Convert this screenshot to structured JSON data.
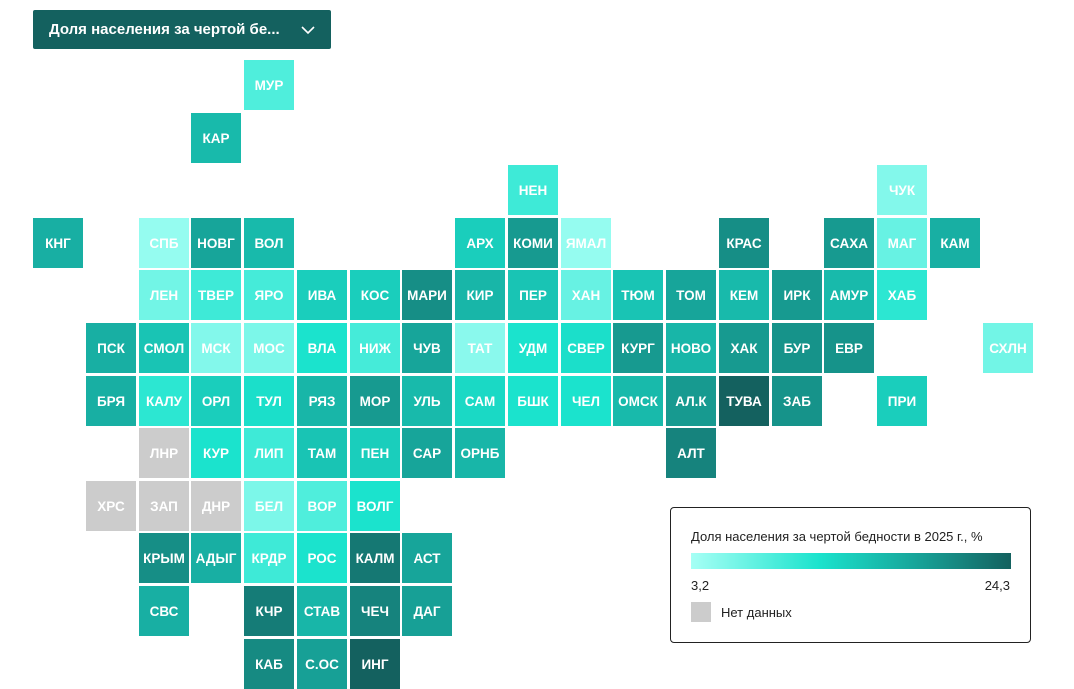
{
  "dropdown": {
    "label": "Доля населения за чертой бе...",
    "icon": "chevron-down-icon"
  },
  "legend": {
    "title": "Доля населения за чертой бедности в 2025 г., %",
    "min_label": "3,2",
    "max_label": "24,3",
    "min": 3.2,
    "max": 24.3,
    "no_data_label": "Нет данных",
    "no_data_color": "#cccccc"
  },
  "tiles": [
    {
      "label": "МУР",
      "col": 4,
      "row": 0,
      "level": 0.25
    },
    {
      "label": "КАР",
      "col": 3,
      "row": 1,
      "level": 0.6
    },
    {
      "label": "НЕН",
      "col": 9,
      "row": 2,
      "level": 0.3
    },
    {
      "label": "ЧУК",
      "col": 16,
      "row": 2,
      "level": 0.1
    },
    {
      "label": "КНГ",
      "col": 0,
      "row": 3,
      "level": 0.65
    },
    {
      "label": "СПБ",
      "col": 2,
      "row": 3,
      "level": 0.05
    },
    {
      "label": "НОВГ",
      "col": 3,
      "row": 3,
      "level": 0.7
    },
    {
      "label": "ВОЛ",
      "col": 4,
      "row": 3,
      "level": 0.6
    },
    {
      "label": "АРХ",
      "col": 8,
      "row": 3,
      "level": 0.5
    },
    {
      "label": "КОМИ",
      "col": 9,
      "row": 3,
      "level": 0.75
    },
    {
      "label": "ЯМАЛ",
      "col": 10,
      "row": 3,
      "level": 0.05
    },
    {
      "label": "КРАС",
      "col": 13,
      "row": 3,
      "level": 0.8
    },
    {
      "label": "САХА",
      "col": 15,
      "row": 3,
      "level": 0.75
    },
    {
      "label": "МАГ",
      "col": 16,
      "row": 3,
      "level": 0.18
    },
    {
      "label": "КАМ",
      "col": 17,
      "row": 3,
      "level": 0.65
    },
    {
      "label": "ЛЕН",
      "col": 2,
      "row": 4,
      "level": 0.15
    },
    {
      "label": "ТВЕР",
      "col": 3,
      "row": 4,
      "level": 0.3
    },
    {
      "label": "ЯРО",
      "col": 4,
      "row": 4,
      "level": 0.28
    },
    {
      "label": "ИВА",
      "col": 5,
      "row": 4,
      "level": 0.5
    },
    {
      "label": "КОС",
      "col": 6,
      "row": 4,
      "level": 0.5
    },
    {
      "label": "МАРИ",
      "col": 7,
      "row": 4,
      "level": 0.8
    },
    {
      "label": "КИР",
      "col": 8,
      "row": 4,
      "level": 0.62
    },
    {
      "label": "ПЕР",
      "col": 9,
      "row": 4,
      "level": 0.55
    },
    {
      "label": "ХАН",
      "col": 10,
      "row": 4,
      "level": 0.18
    },
    {
      "label": "ТЮМ",
      "col": 11,
      "row": 4,
      "level": 0.55
    },
    {
      "label": "ТОМ",
      "col": 12,
      "row": 4,
      "level": 0.7
    },
    {
      "label": "КЕМ",
      "col": 13,
      "row": 4,
      "level": 0.6
    },
    {
      "label": "ИРК",
      "col": 14,
      "row": 4,
      "level": 0.75
    },
    {
      "label": "АМУР",
      "col": 15,
      "row": 4,
      "level": 0.6
    },
    {
      "label": "ХАБ",
      "col": 16,
      "row": 4,
      "level": 0.35
    },
    {
      "label": "ПСК",
      "col": 1,
      "row": 5,
      "level": 0.65
    },
    {
      "label": "СМОЛ",
      "col": 2,
      "row": 5,
      "level": 0.55
    },
    {
      "label": "МСК",
      "col": 3,
      "row": 5,
      "level": 0.1
    },
    {
      "label": "МОС",
      "col": 4,
      "row": 5,
      "level": 0.12
    },
    {
      "label": "ВЛА",
      "col": 5,
      "row": 5,
      "level": 0.4
    },
    {
      "label": "НИЖ",
      "col": 6,
      "row": 5,
      "level": 0.28
    },
    {
      "label": "ЧУВ",
      "col": 7,
      "row": 5,
      "level": 0.7
    },
    {
      "label": "ТАТ",
      "col": 8,
      "row": 5,
      "level": 0.08
    },
    {
      "label": "УДМ",
      "col": 9,
      "row": 5,
      "level": 0.4
    },
    {
      "label": "СВЕР",
      "col": 10,
      "row": 5,
      "level": 0.42
    },
    {
      "label": "КУРГ",
      "col": 11,
      "row": 5,
      "level": 0.75
    },
    {
      "label": "НОВО",
      "col": 12,
      "row": 5,
      "level": 0.62
    },
    {
      "label": "ХАК",
      "col": 13,
      "row": 5,
      "level": 0.75
    },
    {
      "label": "БУР",
      "col": 14,
      "row": 5,
      "level": 0.78
    },
    {
      "label": "ЕВР",
      "col": 15,
      "row": 5,
      "level": 0.78
    },
    {
      "label": "СХЛН",
      "col": 18,
      "row": 5,
      "level": 0.15
    },
    {
      "label": "БРЯ",
      "col": 1,
      "row": 6,
      "level": 0.65
    },
    {
      "label": "КАЛУ",
      "col": 2,
      "row": 6,
      "level": 0.35
    },
    {
      "label": "ОРЛ",
      "col": 3,
      "row": 6,
      "level": 0.5
    },
    {
      "label": "ТУЛ",
      "col": 4,
      "row": 6,
      "level": 0.42
    },
    {
      "label": "РЯЗ",
      "col": 5,
      "row": 6,
      "level": 0.62
    },
    {
      "label": "МОР",
      "col": 6,
      "row": 6,
      "level": 0.75
    },
    {
      "label": "УЛЬ",
      "col": 7,
      "row": 6,
      "level": 0.6
    },
    {
      "label": "САМ",
      "col": 8,
      "row": 6,
      "level": 0.45
    },
    {
      "label": "БШК",
      "col": 9,
      "row": 6,
      "level": 0.4
    },
    {
      "label": "ЧЕЛ",
      "col": 10,
      "row": 6,
      "level": 0.4
    },
    {
      "label": "ОМСК",
      "col": 11,
      "row": 6,
      "level": 0.6
    },
    {
      "label": "АЛ.К",
      "col": 12,
      "row": 6,
      "level": 0.75
    },
    {
      "label": "ТУВА",
      "col": 13,
      "row": 6,
      "level": 1.0
    },
    {
      "label": "ЗАБ",
      "col": 14,
      "row": 6,
      "level": 0.78
    },
    {
      "label": "ПРИ",
      "col": 16,
      "row": 6,
      "level": 0.5
    },
    {
      "label": "ЛНР",
      "col": 2,
      "row": 7,
      "level": null
    },
    {
      "label": "КУР",
      "col": 3,
      "row": 7,
      "level": 0.4
    },
    {
      "label": "ЛИП",
      "col": 4,
      "row": 7,
      "level": 0.3
    },
    {
      "label": "ТАМ",
      "col": 5,
      "row": 7,
      "level": 0.55
    },
    {
      "label": "ПЕН",
      "col": 6,
      "row": 7,
      "level": 0.5
    },
    {
      "label": "САР",
      "col": 7,
      "row": 7,
      "level": 0.7
    },
    {
      "label": "ОРНБ",
      "col": 8,
      "row": 7,
      "level": 0.62
    },
    {
      "label": "АЛТ",
      "col": 12,
      "row": 7,
      "level": 0.85
    },
    {
      "label": "ХРС",
      "col": 1,
      "row": 8,
      "level": null
    },
    {
      "label": "ЗАП",
      "col": 2,
      "row": 8,
      "level": null
    },
    {
      "label": "ДНР",
      "col": 3,
      "row": 8,
      "level": null
    },
    {
      "label": "БЕЛ",
      "col": 4,
      "row": 8,
      "level": 0.12
    },
    {
      "label": "ВОР",
      "col": 5,
      "row": 8,
      "level": 0.25
    },
    {
      "label": "ВОЛГ",
      "col": 6,
      "row": 8,
      "level": 0.4
    },
    {
      "label": "КРЫМ",
      "col": 2,
      "row": 9,
      "level": 0.8
    },
    {
      "label": "АДЫГ",
      "col": 3,
      "row": 9,
      "level": 0.65
    },
    {
      "label": "КРДР",
      "col": 4,
      "row": 9,
      "level": 0.3
    },
    {
      "label": "РОС",
      "col": 5,
      "row": 9,
      "level": 0.4
    },
    {
      "label": "КАЛМ",
      "col": 6,
      "row": 9,
      "level": 0.9
    },
    {
      "label": "АСТ",
      "col": 7,
      "row": 9,
      "level": 0.7
    },
    {
      "label": "СВС",
      "col": 2,
      "row": 10,
      "level": 0.65
    },
    {
      "label": "КЧР",
      "col": 4,
      "row": 10,
      "level": 0.88
    },
    {
      "label": "СТАВ",
      "col": 5,
      "row": 10,
      "level": 0.62
    },
    {
      "label": "ЧЕЧ",
      "col": 6,
      "row": 10,
      "level": 0.85
    },
    {
      "label": "ДАГ",
      "col": 7,
      "row": 10,
      "level": 0.72
    },
    {
      "label": "КАБ",
      "col": 4,
      "row": 11,
      "level": 0.82
    },
    {
      "label": "С.ОС",
      "col": 5,
      "row": 11,
      "level": 0.72
    },
    {
      "label": "ИНГ",
      "col": 6,
      "row": 11,
      "level": 1.0
    }
  ]
}
